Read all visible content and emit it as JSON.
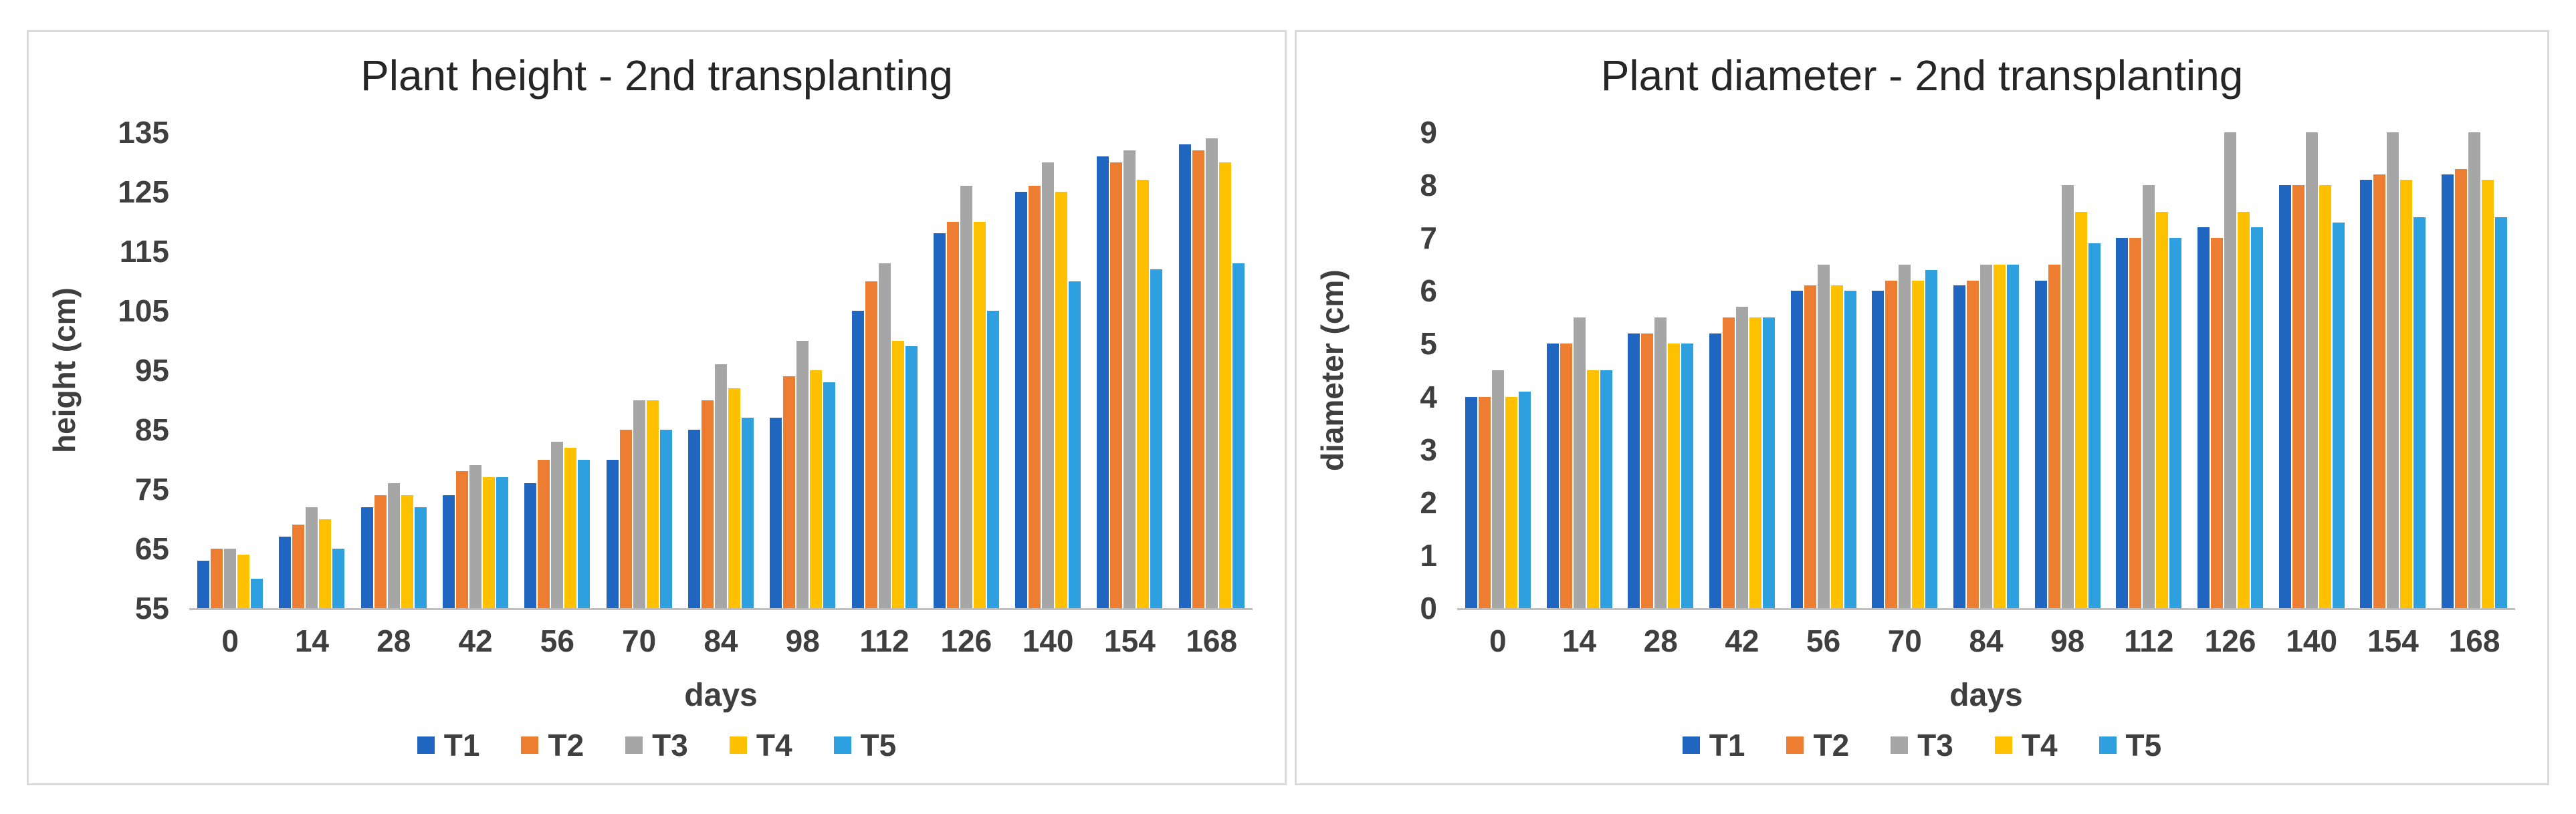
{
  "style": {
    "panel_border_color": "#d9d9d9",
    "axis_line_color": "#bfbfbf",
    "tick_text_color": "#3f3f3f",
    "title_text_color": "#262626",
    "background": "#ffffff"
  },
  "chart_data": [
    {
      "type": "bar",
      "title": "Plant height - 2nd transplanting",
      "xlabel": "days",
      "ylabel": "height (cm)",
      "ylim": [
        55,
        135
      ],
      "yticks": [
        55,
        65,
        75,
        85,
        95,
        105,
        115,
        125,
        135
      ],
      "grid": false,
      "legend_position": "bottom",
      "categories": [
        "0",
        "14",
        "28",
        "42",
        "56",
        "70",
        "84",
        "98",
        "112",
        "126",
        "140",
        "154",
        "168"
      ],
      "series": [
        {
          "name": "T1",
          "color": "#2066C0",
          "values": [
            63,
            67,
            72,
            74,
            76,
            80,
            85,
            87,
            105,
            118,
            125,
            131,
            133
          ]
        },
        {
          "name": "T2",
          "color": "#ED7D31",
          "values": [
            65,
            69,
            74,
            78,
            80,
            85,
            90,
            94,
            110,
            120,
            126,
            130,
            132
          ]
        },
        {
          "name": "T3",
          "color": "#A6A6A6",
          "values": [
            65,
            72,
            76,
            79,
            83,
            90,
            96,
            100,
            113,
            126,
            130,
            132,
            134
          ]
        },
        {
          "name": "T4",
          "color": "#FFC000",
          "values": [
            64,
            70,
            74,
            77,
            82,
            90,
            92,
            95,
            100,
            120,
            125,
            127,
            130
          ]
        },
        {
          "name": "T5",
          "color": "#2E9FDF",
          "values": [
            60,
            65,
            72,
            77,
            80,
            85,
            87,
            93,
            99,
            105,
            110,
            112,
            113
          ]
        }
      ]
    },
    {
      "type": "bar",
      "title": "Plant diameter - 2nd transplanting",
      "xlabel": "days",
      "ylabel": "diameter (cm)",
      "ylim": [
        0,
        9
      ],
      "yticks": [
        0,
        1,
        2,
        3,
        4,
        5,
        6,
        7,
        8,
        9
      ],
      "grid": false,
      "legend_position": "bottom",
      "categories": [
        "0",
        "14",
        "28",
        "42",
        "56",
        "70",
        "84",
        "98",
        "112",
        "126",
        "140",
        "154",
        "168"
      ],
      "series": [
        {
          "name": "T1",
          "color": "#2066C0",
          "values": [
            4.0,
            5.0,
            5.2,
            5.2,
            6.0,
            6.0,
            6.1,
            6.2,
            7.0,
            7.2,
            8.0,
            8.1,
            8.2
          ]
        },
        {
          "name": "T2",
          "color": "#ED7D31",
          "values": [
            4.0,
            5.0,
            5.2,
            5.5,
            6.1,
            6.2,
            6.2,
            6.5,
            7.0,
            7.0,
            8.0,
            8.2,
            8.3
          ]
        },
        {
          "name": "T3",
          "color": "#A6A6A6",
          "values": [
            4.5,
            5.5,
            5.5,
            5.7,
            6.5,
            6.5,
            6.5,
            8.0,
            8.0,
            9.0,
            9.0,
            9.0,
            9.0
          ]
        },
        {
          "name": "T4",
          "color": "#FFC000",
          "values": [
            4.0,
            4.5,
            5.0,
            5.5,
            6.1,
            6.2,
            6.5,
            7.5,
            7.5,
            7.5,
            8.0,
            8.1,
            8.1
          ]
        },
        {
          "name": "T5",
          "color": "#2E9FDF",
          "values": [
            4.1,
            4.5,
            5.0,
            5.5,
            6.0,
            6.4,
            6.5,
            6.9,
            7.0,
            7.2,
            7.3,
            7.4,
            7.4
          ]
        }
      ]
    }
  ]
}
